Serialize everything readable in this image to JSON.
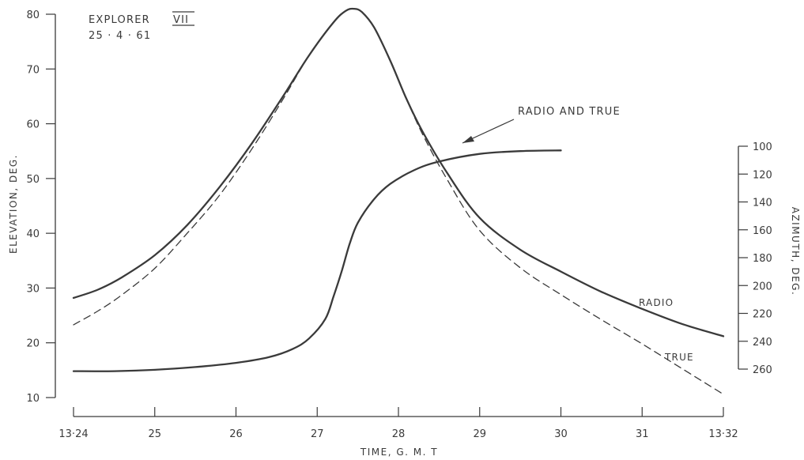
{
  "chart_data": {
    "type": "line",
    "title": "EXPLORER",
    "title_roman": "VII",
    "date": "25 · 4 · 61",
    "xlabel": "TIME, G. M. T",
    "ylabel_left": "ELEVATION, DEG.",
    "ylabel_right": "AZIMUTH, DEG.",
    "x_ticks": [
      "13·24",
      "25",
      "26",
      "27",
      "28",
      "29",
      "30",
      "31",
      "13·32"
    ],
    "xlim": [
      24,
      32
    ],
    "y_left_ticks": [
      "10",
      "20",
      "30",
      "40",
      "50",
      "60",
      "70",
      "80"
    ],
    "ylim_left": [
      10,
      80
    ],
    "y_right_ticks": [
      "100",
      "120",
      "140",
      "160",
      "180",
      "200",
      "220",
      "240",
      "260"
    ],
    "ylim_right": [
      100,
      260
    ],
    "grid": false,
    "annotations": [
      "RADIO AND TRUE",
      "RADIO",
      "TRUE"
    ],
    "series": [
      {
        "name": "RADIO",
        "axis": "left",
        "style": "solid",
        "x": [
          24,
          24.3,
          24.6,
          25.0,
          25.4,
          25.8,
          26.2,
          26.6,
          26.9,
          27.2,
          27.35,
          27.45,
          27.55,
          27.7,
          27.9,
          28.1,
          28.3,
          28.6,
          29.0,
          29.5,
          30.0,
          30.5,
          31.0,
          31.5,
          32.0
        ],
        "y": [
          28.2,
          29.7,
          32.0,
          36.0,
          41.5,
          48.5,
          56.5,
          65.5,
          72.5,
          78.5,
          80.6,
          81.0,
          80.4,
          77.6,
          71.5,
          64.5,
          58.5,
          51.0,
          42.8,
          37.0,
          33.0,
          29.3,
          26.2,
          23.4,
          21.2
        ]
      },
      {
        "name": "TRUE",
        "axis": "left",
        "style": "dashed",
        "x": [
          24,
          24.3,
          24.6,
          25.0,
          25.4,
          25.8,
          26.2,
          26.6,
          26.9,
          27.2,
          27.35,
          27.45,
          27.55,
          27.7,
          27.9,
          28.1,
          28.3,
          28.6,
          29.0,
          29.5,
          30.0,
          30.5,
          31.0,
          31.5,
          32.0
        ],
        "y": [
          23.3,
          25.8,
          28.8,
          33.6,
          40.0,
          47.0,
          55.5,
          65.0,
          72.5,
          78.5,
          80.6,
          81.0,
          80.4,
          77.6,
          71.5,
          64.5,
          58.0,
          49.8,
          40.5,
          33.7,
          28.8,
          24.2,
          19.8,
          15.2,
          10.6
        ]
      },
      {
        "name": "RADIO AND TRUE",
        "axis": "right",
        "style": "solid",
        "x": [
          24,
          24.5,
          25.0,
          25.5,
          26.0,
          26.4,
          26.7,
          26.9,
          27.1,
          27.2,
          27.3,
          27.4,
          27.5,
          27.7,
          27.9,
          28.2,
          28.5,
          29.0,
          29.5,
          30.0
        ],
        "y": [
          261.5,
          261.5,
          260.5,
          258.5,
          255.5,
          251.5,
          245.5,
          238.0,
          224.0,
          208.0,
          190.0,
          170.0,
          155.0,
          138.0,
          127.0,
          117.0,
          111.0,
          105.5,
          103.5,
          103.0
        ]
      }
    ]
  }
}
